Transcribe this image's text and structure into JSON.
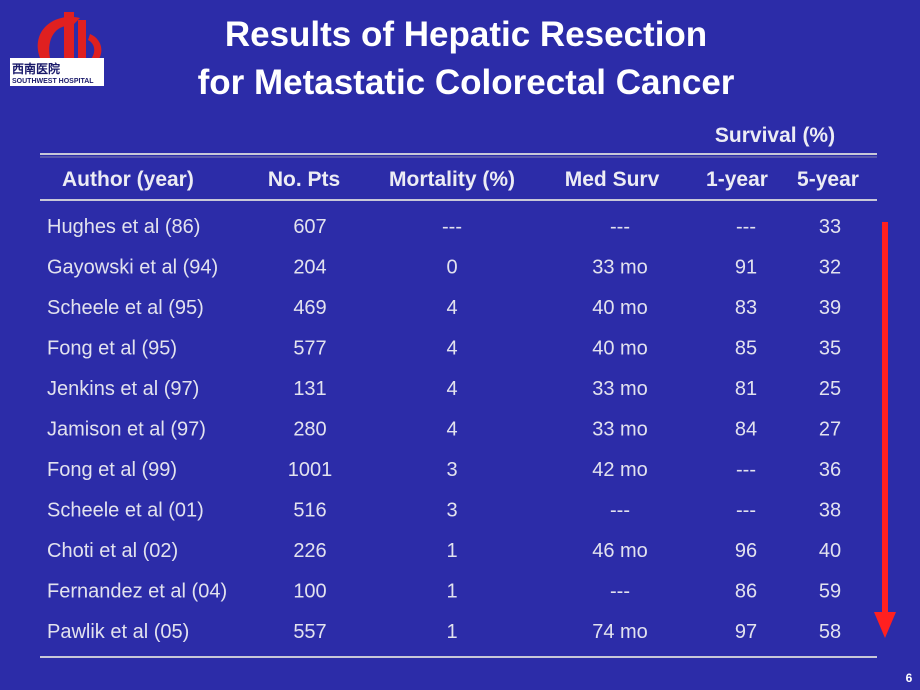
{
  "logo": {
    "name_cn": "西南医院",
    "name_en": "SOUTHWEST HOSPITAL"
  },
  "title": [
    "Results of Hepatic Resection",
    "for Metastatic Colorectal Cancer"
  ],
  "table": {
    "group_header": "Survival (%)",
    "headers": [
      "Author (year)",
      "No. Pts",
      "Mortality (%)",
      "Med Surv",
      "1-year",
      "5-year"
    ],
    "rows": [
      [
        "Hughes et al (86)",
        "607",
        "---",
        "---",
        "---",
        "33"
      ],
      [
        "Gayowski et al (94)",
        "204",
        "0",
        "33 mo",
        "91",
        "32"
      ],
      [
        "Scheele et al (95)",
        "469",
        "4",
        "40 mo",
        "83",
        "39"
      ],
      [
        "Fong et al (95)",
        "577",
        "4",
        "40 mo",
        "85",
        "35"
      ],
      [
        "Jenkins et al (97)",
        "131",
        "4",
        "33 mo",
        "81",
        "25"
      ],
      [
        "Jamison et al (97)",
        "280",
        "4",
        "33 mo",
        "84",
        "27"
      ],
      [
        "Fong et al (99)",
        "1001",
        "3",
        "42 mo",
        "---",
        "36"
      ],
      [
        "Scheele et al (01)",
        "516",
        "3",
        "---",
        "---",
        "38"
      ],
      [
        "Choti et al (02)",
        "226",
        "1",
        "46 mo",
        "96",
        "40"
      ],
      [
        "Fernandez et al (04)",
        "100",
        "1",
        "---",
        "86",
        "59"
      ],
      [
        "Pawlik et al (05)",
        "557",
        "1",
        "74 mo",
        "97",
        "58"
      ]
    ]
  },
  "page_number": "6"
}
